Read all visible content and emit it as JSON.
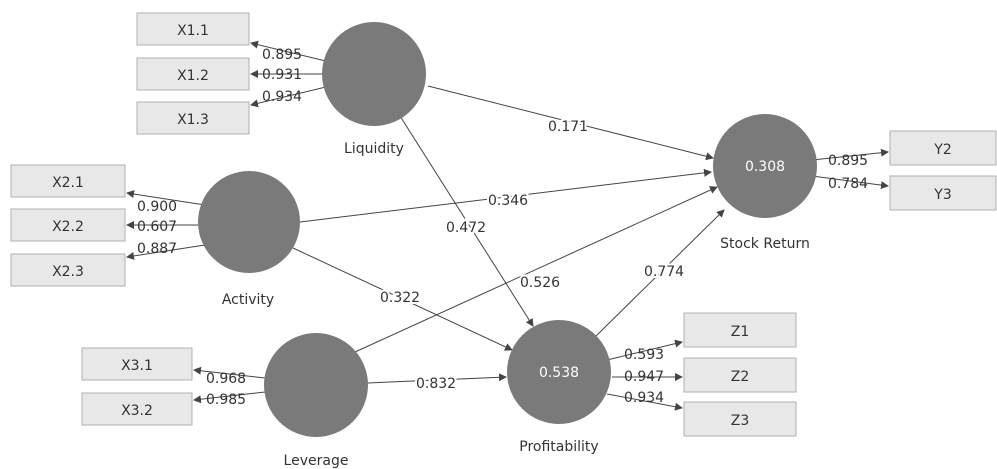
{
  "constructs": {
    "liquidity": {
      "label": "Liquidity",
      "r2": ""
    },
    "activity": {
      "label": "Activity",
      "r2": ""
    },
    "leverage": {
      "label": "Leverage",
      "r2": ""
    },
    "profitability": {
      "label": "Profitability",
      "r2": "0.538"
    },
    "stock_return": {
      "label": "Stock Return",
      "r2": "0.308"
    }
  },
  "indicators": {
    "x1_1": {
      "label": "X1.1",
      "loading": "0.895"
    },
    "x1_2": {
      "label": "X1.2",
      "loading": "0.931"
    },
    "x1_3": {
      "label": "X1.3",
      "loading": "0.934"
    },
    "x2_1": {
      "label": "X2.1",
      "loading": "0.900"
    },
    "x2_2": {
      "label": "X2.2",
      "loading": "0.607"
    },
    "x2_3": {
      "label": "X2.3",
      "loading": "0.887"
    },
    "x3_1": {
      "label": "X3.1",
      "loading": "0.968"
    },
    "x3_2": {
      "label": "X3.2",
      "loading": "0.985"
    },
    "y2": {
      "label": "Y2",
      "loading": "0.895"
    },
    "y3": {
      "label": "Y3",
      "loading": "0.784"
    },
    "z1": {
      "label": "Z1",
      "loading": "0.593"
    },
    "z2": {
      "label": "Z2",
      "loading": "0.947"
    },
    "z3": {
      "label": "Z3",
      "loading": "0.934"
    }
  },
  "paths": {
    "liquidity_stock_return": "0.171",
    "liquidity_profitability": "0.472",
    "activity_stock_return": "0.346",
    "activity_profitability": "0.322",
    "leverage_stock_return": "0.526",
    "leverage_profitability": "0.832",
    "profitability_stock_return": "0.774"
  },
  "colors": {
    "construct_fill": "#7a7a7a",
    "indicator_fill": "#e8e8e8",
    "indicator_border": "#b0b0b0",
    "arrow": "#444444"
  }
}
